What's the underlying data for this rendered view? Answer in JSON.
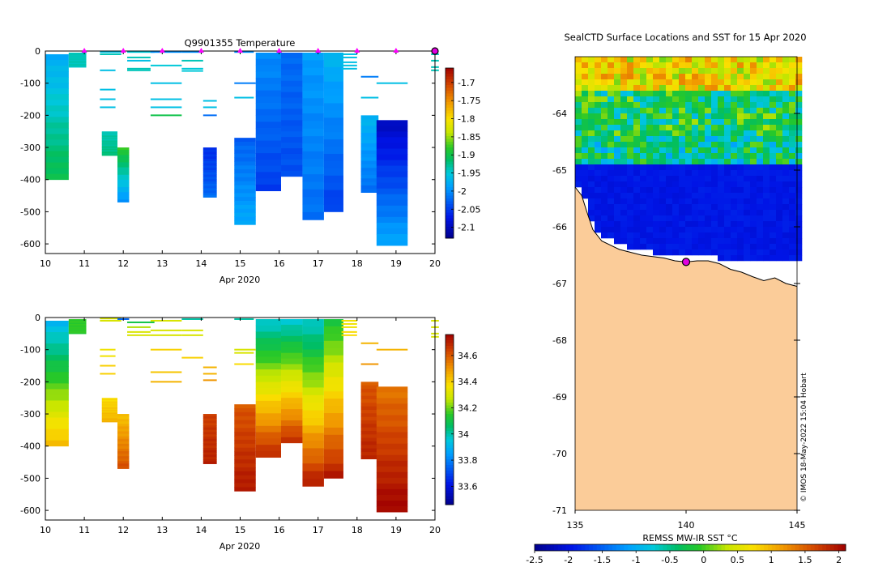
{
  "chart_data": [
    {
      "type": "heatmap",
      "title": "Q9901355  Temperature",
      "xlabel": "Apr 2020",
      "ylabel": "",
      "xlim": [
        10,
        20
      ],
      "ylim": [
        -630,
        0
      ],
      "xticks": [
        "10",
        "11",
        "12",
        "13",
        "14",
        "15",
        "16",
        "17",
        "18",
        "19",
        "20"
      ],
      "yticks": [
        "0",
        "-100",
        "-200",
        "-300",
        "-400",
        "-500",
        "-600"
      ],
      "colorbar": {
        "ticks": [
          "-1.7",
          "-1.75",
          "-1.8",
          "-1.85",
          "-1.9",
          "-1.95",
          "-2",
          "-2.05",
          "-2.1"
        ],
        "range": [
          -2.13,
          -1.66
        ]
      },
      "surface_markers_x": [
        11,
        12,
        13,
        14,
        15,
        16,
        17,
        18,
        19,
        20
      ],
      "profiles": [
        {
          "x": 10.0,
          "w": 0.6,
          "top": -10,
          "bottom": -400,
          "vtop": -1.98,
          "vbot": -1.9
        },
        {
          "x": 10.6,
          "w": 0.45,
          "top": -5,
          "bottom": -50,
          "vtop": -1.94,
          "vbot": -1.94
        },
        {
          "x": 11.45,
          "w": 0.4,
          "top": -250,
          "bottom": -325,
          "vtop": -1.94,
          "vbot": -1.92
        },
        {
          "x": 11.85,
          "w": 0.3,
          "top": -300,
          "bottom": -470,
          "vtop": -1.88,
          "vbot": -2.0
        },
        {
          "x": 14.05,
          "w": 0.35,
          "top": -300,
          "bottom": -455,
          "vtop": -2.06,
          "vbot": -2.02
        },
        {
          "x": 14.85,
          "w": 0.55,
          "top": -270,
          "bottom": -540,
          "vtop": -2.03,
          "vbot": -1.98
        },
        {
          "x": 15.4,
          "w": 0.65,
          "top": -5,
          "bottom": -435,
          "vtop": -2.0,
          "vbot": -2.05
        },
        {
          "x": 16.05,
          "w": 0.55,
          "top": -5,
          "bottom": -390,
          "vtop": -2.02,
          "vbot": -2.04
        },
        {
          "x": 16.6,
          "w": 0.55,
          "top": -5,
          "bottom": -525,
          "vtop": -1.99,
          "vbot": -2.02
        },
        {
          "x": 17.15,
          "w": 0.5,
          "top": -5,
          "bottom": -500,
          "vtop": -1.97,
          "vbot": -2.05
        },
        {
          "x": 18.1,
          "w": 0.45,
          "top": -200,
          "bottom": -440,
          "vtop": -1.97,
          "vbot": -2.02
        },
        {
          "x": 18.5,
          "w": 0.8,
          "top": -215,
          "bottom": -605,
          "vtop": -2.1,
          "vbot": -1.98
        }
      ],
      "thin_lines": [
        {
          "x": 11.4,
          "w": 0.55,
          "d": -3,
          "v": -1.96
        },
        {
          "x": 11.4,
          "w": 0.55,
          "d": -10,
          "v": -1.94
        },
        {
          "x": 11.4,
          "w": 0.4,
          "d": -60,
          "v": -1.96
        },
        {
          "x": 11.4,
          "w": 0.4,
          "d": -120,
          "v": -1.96
        },
        {
          "x": 11.4,
          "w": 0.4,
          "d": -150,
          "v": -1.96
        },
        {
          "x": 11.4,
          "w": 0.4,
          "d": -175,
          "v": -1.96
        },
        {
          "x": 12.1,
          "w": 0.7,
          "d": -3,
          "v": -1.95
        },
        {
          "x": 12.1,
          "w": 0.6,
          "d": -20,
          "v": -1.94
        },
        {
          "x": 12.1,
          "w": 0.6,
          "d": -30,
          "v": -1.96
        },
        {
          "x": 12.1,
          "w": 0.6,
          "d": -55,
          "v": -1.94
        },
        {
          "x": 12.1,
          "w": 0.6,
          "d": -60,
          "v": -1.94
        },
        {
          "x": 12.7,
          "w": 0.8,
          "d": -3,
          "v": -2.0
        },
        {
          "x": 12.7,
          "w": 0.8,
          "d": -45,
          "v": -1.95
        },
        {
          "x": 12.7,
          "w": 0.8,
          "d": -100,
          "v": -1.96
        },
        {
          "x": 12.7,
          "w": 0.8,
          "d": -150,
          "v": -1.96
        },
        {
          "x": 12.7,
          "w": 0.8,
          "d": -175,
          "v": -1.96
        },
        {
          "x": 12.7,
          "w": 0.8,
          "d": -200,
          "v": -1.9
        },
        {
          "x": 13.5,
          "w": 0.55,
          "d": -3,
          "v": -2.0
        },
        {
          "x": 13.5,
          "w": 0.55,
          "d": -30,
          "v": -1.94
        },
        {
          "x": 13.5,
          "w": 0.55,
          "d": -55,
          "v": -1.95
        },
        {
          "x": 13.5,
          "w": 0.55,
          "d": -62,
          "v": -1.95
        },
        {
          "x": 14.05,
          "w": 0.35,
          "d": -155,
          "v": -1.96
        },
        {
          "x": 14.05,
          "w": 0.35,
          "d": -175,
          "v": -1.96
        },
        {
          "x": 14.05,
          "w": 0.35,
          "d": -200,
          "v": -2.02
        },
        {
          "x": 14.85,
          "w": 0.5,
          "d": -3,
          "v": -2.0
        },
        {
          "x": 14.85,
          "w": 0.55,
          "d": -100,
          "v": -2.01
        },
        {
          "x": 14.85,
          "w": 0.5,
          "d": -145,
          "v": -1.96
        },
        {
          "x": 17.6,
          "w": 0.4,
          "d": -10,
          "v": -1.96
        },
        {
          "x": 17.6,
          "w": 0.4,
          "d": -20,
          "v": -1.96
        },
        {
          "x": 17.6,
          "w": 0.4,
          "d": -35,
          "v": -1.96
        },
        {
          "x": 17.6,
          "w": 0.4,
          "d": -45,
          "v": -1.96
        },
        {
          "x": 17.6,
          "w": 0.4,
          "d": -55,
          "v": -1.96
        },
        {
          "x": 18.1,
          "w": 0.45,
          "d": -80,
          "v": -2.01
        },
        {
          "x": 18.1,
          "w": 0.45,
          "d": -145,
          "v": -1.96
        },
        {
          "x": 18.5,
          "w": 0.8,
          "d": -100,
          "v": -1.96
        },
        {
          "x": 19.9,
          "w": 0.2,
          "d": -10,
          "v": -1.94
        },
        {
          "x": 19.9,
          "w": 0.2,
          "d": -30,
          "v": -1.94
        },
        {
          "x": 19.9,
          "w": 0.2,
          "d": -50,
          "v": -1.94
        },
        {
          "x": 19.9,
          "w": 0.2,
          "d": -60,
          "v": -1.94
        }
      ]
    },
    {
      "type": "heatmap",
      "title": "",
      "xlabel": "Apr 2020",
      "ylabel": "",
      "xlim": [
        10,
        20
      ],
      "ylim": [
        -630,
        0
      ],
      "xticks": [
        "10",
        "11",
        "12",
        "13",
        "14",
        "15",
        "16",
        "17",
        "18",
        "19",
        "20"
      ],
      "yticks": [
        "0",
        "-100",
        "-200",
        "-300",
        "-400",
        "-500",
        "-600"
      ],
      "colorbar": {
        "ticks": [
          "34.6",
          "34.4",
          "34.2",
          "34",
          "33.8",
          "33.6"
        ],
        "range": [
          33.46,
          34.76
        ]
      },
      "profiles": [
        {
          "x": 10.0,
          "w": 0.6,
          "top": -10,
          "bottom": -400,
          "vtop": 33.9,
          "vbot": 34.45
        },
        {
          "x": 10.6,
          "w": 0.45,
          "top": -5,
          "bottom": -50,
          "vtop": 34.15,
          "vbot": 34.15
        },
        {
          "x": 11.45,
          "w": 0.4,
          "top": -250,
          "bottom": -325,
          "vtop": 34.38,
          "vbot": 34.45
        },
        {
          "x": 11.85,
          "w": 0.3,
          "top": -300,
          "bottom": -470,
          "vtop": 34.42,
          "vbot": 34.62
        },
        {
          "x": 14.05,
          "w": 0.35,
          "top": -300,
          "bottom": -455,
          "vtop": 34.64,
          "vbot": 34.7
        },
        {
          "x": 14.85,
          "w": 0.55,
          "top": -270,
          "bottom": -540,
          "vtop": 34.6,
          "vbot": 34.72
        },
        {
          "x": 15.4,
          "w": 0.65,
          "top": -5,
          "bottom": -435,
          "vtop": 33.95,
          "vbot": 34.7
        },
        {
          "x": 16.05,
          "w": 0.55,
          "top": -5,
          "bottom": -390,
          "vtop": 33.95,
          "vbot": 34.68
        },
        {
          "x": 16.6,
          "w": 0.55,
          "top": -5,
          "bottom": -525,
          "vtop": 33.95,
          "vbot": 34.72
        },
        {
          "x": 17.15,
          "w": 0.5,
          "top": -5,
          "bottom": -500,
          "vtop": 34.1,
          "vbot": 34.72
        },
        {
          "x": 18.1,
          "w": 0.45,
          "top": -200,
          "bottom": -440,
          "vtop": 34.6,
          "vbot": 34.7
        },
        {
          "x": 18.5,
          "w": 0.8,
          "top": -215,
          "bottom": -605,
          "vtop": 34.55,
          "vbot": 34.76
        }
      ],
      "thin_lines": [
        {
          "x": 11.4,
          "w": 0.55,
          "d": -3,
          "v": 34.3
        },
        {
          "x": 11.4,
          "w": 0.55,
          "d": -10,
          "v": 34.3
        },
        {
          "x": 11.4,
          "w": 0.4,
          "d": -100,
          "v": 34.35
        },
        {
          "x": 11.4,
          "w": 0.4,
          "d": -120,
          "v": 34.35
        },
        {
          "x": 11.4,
          "w": 0.4,
          "d": -150,
          "v": 34.4
        },
        {
          "x": 11.4,
          "w": 0.4,
          "d": -175,
          "v": 34.4
        },
        {
          "x": 11.85,
          "w": 0.3,
          "d": -5,
          "v": 33.75
        },
        {
          "x": 12.1,
          "w": 0.7,
          "d": -15,
          "v": 34.1
        },
        {
          "x": 12.1,
          "w": 0.6,
          "d": -30,
          "v": 34.25
        },
        {
          "x": 12.1,
          "w": 0.6,
          "d": -45,
          "v": 34.3
        },
        {
          "x": 12.1,
          "w": 0.6,
          "d": -55,
          "v": 34.3
        },
        {
          "x": 12.7,
          "w": 0.8,
          "d": -10,
          "v": 34.3
        },
        {
          "x": 12.7,
          "w": 0.8,
          "d": -40,
          "v": 34.3
        },
        {
          "x": 12.7,
          "w": 0.8,
          "d": -55,
          "v": 34.3
        },
        {
          "x": 12.7,
          "w": 0.8,
          "d": -100,
          "v": 34.4
        },
        {
          "x": 12.7,
          "w": 0.8,
          "d": -170,
          "v": 34.42
        },
        {
          "x": 12.7,
          "w": 0.8,
          "d": -200,
          "v": 34.45
        },
        {
          "x": 13.5,
          "w": 0.55,
          "d": -5,
          "v": 34.0
        },
        {
          "x": 13.5,
          "w": 0.55,
          "d": -40,
          "v": 34.3
        },
        {
          "x": 13.5,
          "w": 0.55,
          "d": -55,
          "v": 34.3
        },
        {
          "x": 13.5,
          "w": 0.55,
          "d": -125,
          "v": 34.4
        },
        {
          "x": 14.05,
          "w": 0.35,
          "d": -155,
          "v": 34.45
        },
        {
          "x": 14.05,
          "w": 0.35,
          "d": -175,
          "v": 34.45
        },
        {
          "x": 14.05,
          "w": 0.35,
          "d": -195,
          "v": 34.5
        },
        {
          "x": 14.85,
          "w": 0.5,
          "d": -5,
          "v": 34.0
        },
        {
          "x": 14.85,
          "w": 0.55,
          "d": -100,
          "v": 34.3
        },
        {
          "x": 14.85,
          "w": 0.5,
          "d": -110,
          "v": 34.3
        },
        {
          "x": 14.85,
          "w": 0.5,
          "d": -145,
          "v": 34.38
        },
        {
          "x": 17.6,
          "w": 0.4,
          "d": -10,
          "v": 34.35
        },
        {
          "x": 17.6,
          "w": 0.4,
          "d": -20,
          "v": 34.35
        },
        {
          "x": 17.6,
          "w": 0.4,
          "d": -30,
          "v": 34.35
        },
        {
          "x": 17.6,
          "w": 0.4,
          "d": -45,
          "v": 34.38
        },
        {
          "x": 17.6,
          "w": 0.4,
          "d": -55,
          "v": 34.38
        },
        {
          "x": 18.1,
          "w": 0.45,
          "d": -80,
          "v": 34.45
        },
        {
          "x": 18.1,
          "w": 0.45,
          "d": -145,
          "v": 34.5
        },
        {
          "x": 18.5,
          "w": 0.8,
          "d": -100,
          "v": 34.45
        },
        {
          "x": 19.9,
          "w": 0.2,
          "d": -10,
          "v": 34.3
        },
        {
          "x": 19.9,
          "w": 0.2,
          "d": -30,
          "v": 34.3
        },
        {
          "x": 19.9,
          "w": 0.2,
          "d": -50,
          "v": 34.3
        },
        {
          "x": 19.9,
          "w": 0.2,
          "d": -60,
          "v": 34.3
        }
      ]
    },
    {
      "type": "heatmap",
      "title": "SealCTD Surface Locations and SST for 15 Apr 2020",
      "xlabel": "",
      "ylabel": "",
      "xlim": [
        135,
        145
      ],
      "ylim": [
        -71,
        -63
      ],
      "xticks": [
        "135",
        "140",
        "145"
      ],
      "yticks": [
        "-64",
        "-65",
        "-66",
        "-67",
        "-68",
        "-69",
        "-70",
        "-71"
      ],
      "colorbar": {
        "label": "REMSS MW-IR SST °C",
        "ticks": [
          "-2.5",
          "-2",
          "-1.5",
          "-1",
          "-0.5",
          "0",
          "0.5",
          "1",
          "1.5",
          "2"
        ],
        "range": [
          -2.5,
          2.1
        ]
      },
      "sst_bands": [
        {
          "lat_top": -63.0,
          "lat_bot": -63.6,
          "value": 0.7
        },
        {
          "lat_top": -63.6,
          "lat_bot": -64.4,
          "value": -0.3
        },
        {
          "lat_top": -64.4,
          "lat_bot": -64.95,
          "value": -0.5
        },
        {
          "lat_top": -64.95,
          "lat_bot": -66.6,
          "value": -1.95
        }
      ],
      "coast_lon": [
        135,
        135.3,
        135.5,
        135.8,
        136.2,
        137,
        138,
        139,
        139.5,
        140,
        140.5,
        141,
        141.5,
        142,
        142.5,
        143,
        143.5,
        144,
        144.5,
        145
      ],
      "coast_lat": [
        -65.3,
        -65.45,
        -65.7,
        -66.05,
        -66.25,
        -66.4,
        -66.5,
        -66.55,
        -66.6,
        -66.62,
        -66.6,
        -66.6,
        -66.65,
        -66.75,
        -66.8,
        -66.88,
        -66.95,
        -66.9,
        -67.0,
        -67.05
      ],
      "seal_location": {
        "lon": 140.0,
        "lat": -66.62
      },
      "attribution": "© IMOS 18-May-2022 15:04 Hobart"
    }
  ]
}
